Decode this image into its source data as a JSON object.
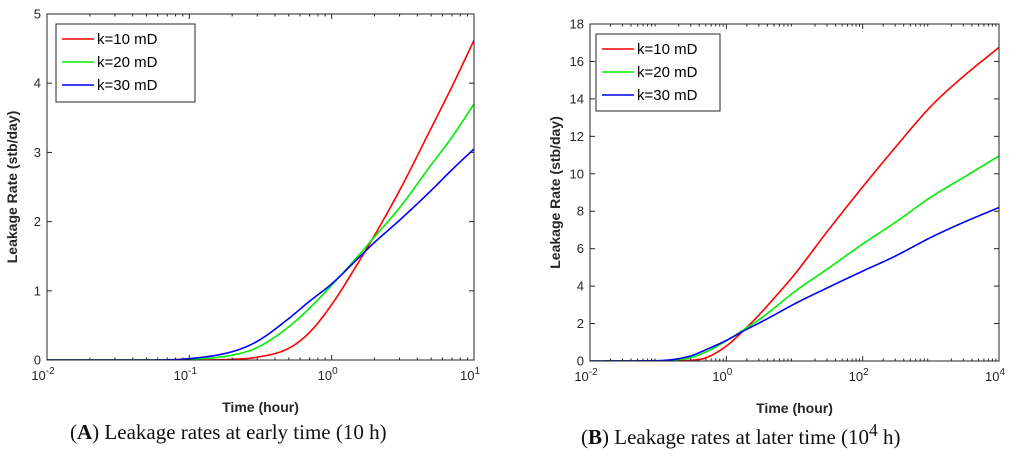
{
  "captions": {
    "a": {
      "open": "(",
      "letter": "A",
      "rest": ") Leakage rates at early time (10 h)"
    },
    "b": {
      "open": "(",
      "letter": "B",
      "rest": ") Leakage rates at later time (10",
      "sup": "4",
      "close": " h)"
    }
  },
  "chart_data": [
    {
      "type": "line",
      "title": "",
      "xlabel": "Time (hour)",
      "ylabel": "Leakage Rate (stb/day)",
      "xscale": "log",
      "xlim": [
        0.01,
        10
      ],
      "ylim": [
        0,
        5
      ],
      "xticks": [
        {
          "value": 0.01,
          "base": "10",
          "exp": "-2"
        },
        {
          "value": 0.1,
          "base": "10",
          "exp": "-1"
        },
        {
          "value": 1,
          "base": "10",
          "exp": "0"
        },
        {
          "value": 10,
          "base": "10",
          "exp": "1"
        }
      ],
      "yticks": [
        0,
        1,
        2,
        3,
        4,
        5
      ],
      "legend_position": "top-left",
      "series": [
        {
          "name": "k=10 mD",
          "color": "#ff0000",
          "x": [
            0.01,
            0.1,
            0.2,
            0.3,
            0.5,
            0.7,
            1.0,
            1.5,
            2.0,
            3.0,
            5.0,
            7.0,
            10.0
          ],
          "y": [
            0,
            0,
            0.01,
            0.04,
            0.17,
            0.4,
            0.8,
            1.37,
            1.8,
            2.45,
            3.35,
            3.95,
            4.62
          ]
        },
        {
          "name": "k=20 mD",
          "color": "#00ee00",
          "x": [
            0.01,
            0.05,
            0.1,
            0.2,
            0.3,
            0.5,
            0.7,
            1.0,
            1.5,
            2.0,
            3.0,
            5.0,
            7.0,
            10.0
          ],
          "y": [
            0,
            0,
            0.01,
            0.07,
            0.18,
            0.48,
            0.75,
            1.08,
            1.48,
            1.78,
            2.2,
            2.82,
            3.22,
            3.7
          ]
        },
        {
          "name": "k=30 mD",
          "color": "#0000ff",
          "x": [
            0.01,
            0.05,
            0.1,
            0.2,
            0.3,
            0.5,
            0.7,
            1.0,
            1.5,
            2.0,
            3.0,
            5.0,
            7.0,
            10.0
          ],
          "y": [
            0,
            0,
            0.02,
            0.12,
            0.27,
            0.6,
            0.85,
            1.1,
            1.45,
            1.7,
            2.02,
            2.45,
            2.75,
            3.05
          ]
        }
      ]
    },
    {
      "type": "line",
      "title": "",
      "xlabel": "Time (hour)",
      "ylabel": "Leakage Rate (stb/day)",
      "xscale": "log",
      "xlim": [
        0.01,
        10000
      ],
      "ylim": [
        0,
        18
      ],
      "xticks": [
        {
          "value": 0.01,
          "base": "10",
          "exp": "-2"
        },
        {
          "value": 1,
          "base": "10",
          "exp": "0"
        },
        {
          "value": 100,
          "base": "10",
          "exp": "2"
        },
        {
          "value": 10000,
          "base": "10",
          "exp": "4"
        }
      ],
      "yticks": [
        0,
        2,
        4,
        6,
        8,
        10,
        12,
        14,
        16,
        18
      ],
      "legend_position": "top-left",
      "series": [
        {
          "name": "k=10 mD",
          "color": "#ff0000",
          "x": [
            0.01,
            0.1,
            0.3,
            0.5,
            1,
            2,
            3,
            5,
            10,
            30,
            100,
            300,
            1000,
            3000,
            10000
          ],
          "y": [
            0,
            0,
            0.04,
            0.17,
            0.8,
            1.8,
            2.45,
            3.35,
            4.62,
            6.9,
            9.3,
            11.4,
            13.6,
            15.2,
            16.75
          ]
        },
        {
          "name": "k=20 mD",
          "color": "#00ee00",
          "x": [
            0.01,
            0.1,
            0.3,
            0.5,
            1,
            2,
            3,
            5,
            10,
            30,
            100,
            300,
            1000,
            3000,
            10000
          ],
          "y": [
            0,
            0.01,
            0.18,
            0.48,
            1.08,
            1.78,
            2.2,
            2.82,
            3.7,
            4.9,
            6.25,
            7.4,
            8.75,
            9.8,
            10.95
          ]
        },
        {
          "name": "k=30 mD",
          "color": "#0000ff",
          "x": [
            0.01,
            0.1,
            0.3,
            0.5,
            1,
            2,
            3,
            5,
            10,
            30,
            100,
            300,
            1000,
            3000,
            10000
          ],
          "y": [
            0,
            0.02,
            0.27,
            0.6,
            1.1,
            1.7,
            2.02,
            2.45,
            3.05,
            3.9,
            4.8,
            5.6,
            6.6,
            7.4,
            8.2
          ]
        }
      ]
    }
  ]
}
